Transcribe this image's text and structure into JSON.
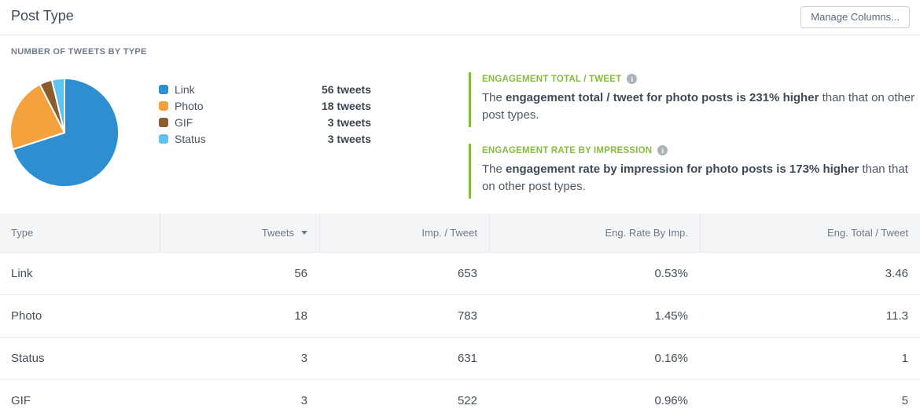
{
  "header": {
    "title": "Post Type",
    "manage_columns_label": "Manage Columns..."
  },
  "section": {
    "label": "NUMBER OF TWEETS BY TYPE"
  },
  "chart_data": {
    "type": "pie",
    "title": "Number of Tweets by Type",
    "categories": [
      "Link",
      "Photo",
      "GIF",
      "Status"
    ],
    "values": [
      56,
      18,
      3,
      3
    ],
    "unit": "tweets",
    "colors": [
      "#2e8fd0",
      "#f4a23e",
      "#8b5d2e",
      "#5fc3f1"
    ],
    "start_angle_deg": -90,
    "direction": "clockwise",
    "legend_position": "right",
    "legend": [
      {
        "label": "Link",
        "value_text": "56 tweets"
      },
      {
        "label": "Photo",
        "value_text": "18 tweets"
      },
      {
        "label": "GIF",
        "value_text": "3 tweets"
      },
      {
        "label": "Status",
        "value_text": "3 tweets"
      }
    ]
  },
  "insights": [
    {
      "title": "ENGAGEMENT TOTAL / TWEET",
      "info_icon": "info-icon",
      "text_prefix": "The ",
      "text_bold": "engagement total / tweet for photo posts is 231% higher",
      "text_suffix": " than that on other post types."
    },
    {
      "title": "ENGAGEMENT RATE BY IMPRESSION",
      "info_icon": "info-icon",
      "text_prefix": "The ",
      "text_bold": "engagement rate by impression for photo posts is 173% higher",
      "text_suffix": " than that on other post types."
    }
  ],
  "table": {
    "columns": [
      "Type",
      "Tweets",
      "Imp. / Tweet",
      "Eng. Rate By Imp.",
      "Eng. Total / Tweet"
    ],
    "sorted_column": "Tweets",
    "sort_direction": "descending",
    "rows": [
      {
        "type": "Link",
        "tweets": "56",
        "imp_per_tweet": "653",
        "eng_rate_by_imp": "0.53%",
        "eng_total_per_tweet": "3.46"
      },
      {
        "type": "Photo",
        "tweets": "18",
        "imp_per_tweet": "783",
        "eng_rate_by_imp": "1.45%",
        "eng_total_per_tweet": "11.3"
      },
      {
        "type": "Status",
        "tweets": "3",
        "imp_per_tweet": "631",
        "eng_rate_by_imp": "0.16%",
        "eng_total_per_tweet": "1"
      },
      {
        "type": "GIF",
        "tweets": "3",
        "imp_per_tweet": "522",
        "eng_rate_by_imp": "0.96%",
        "eng_total_per_tweet": "5"
      }
    ]
  },
  "colors": {
    "accent_green": "#85bc40",
    "link_blue": "#2e8fd0",
    "photo_orange": "#f4a23e",
    "gif_brown": "#8b5d2e",
    "status_light_blue": "#5fc3f1"
  }
}
